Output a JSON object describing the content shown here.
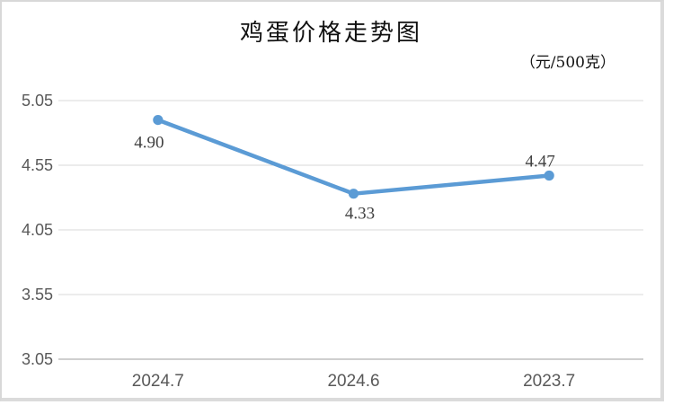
{
  "chart_data": {
    "type": "line",
    "title": "鸡蛋价格走势图",
    "unit_label": "（元/500克）",
    "categories": [
      "2024.7",
      "2024.6",
      "2023.7"
    ],
    "values": [
      4.9,
      4.33,
      4.47
    ],
    "data_labels": [
      "4.90",
      "4.33",
      "4.47"
    ],
    "data_label_positions": [
      "below-left",
      "below",
      "above"
    ],
    "y_ticks": [
      3.05,
      3.55,
      4.05,
      4.55,
      5.05
    ],
    "ylim": [
      3.05,
      5.05
    ],
    "xlabel": "",
    "ylabel": "",
    "grid": true,
    "legend": "none",
    "colors": {
      "line": "#5b9bd5",
      "marker": "#5b9bd5",
      "gridline": "#d9d9d9",
      "axis_line": "#bfbfbf",
      "tick_label": "#595959",
      "data_label": "#404040",
      "title": "#111111"
    }
  }
}
